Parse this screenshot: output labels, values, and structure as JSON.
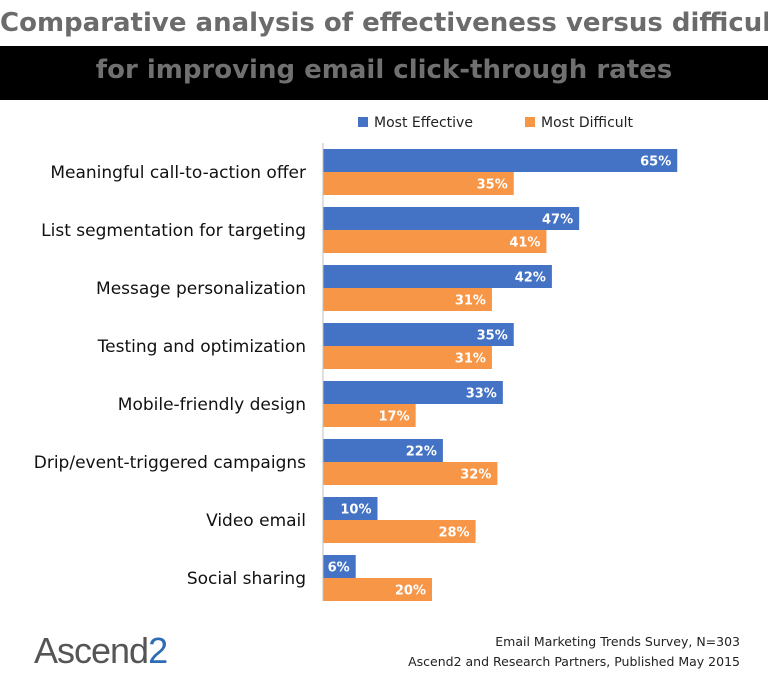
{
  "title": {
    "line1": "Comparative analysis of effectiveness versus difficulty",
    "line2": "for improving email click-through rates"
  },
  "chart_data": {
    "type": "bar",
    "orientation": "horizontal",
    "categories": [
      "Meaningful call-to-action offer",
      "List segmentation for targeting",
      "Message personalization",
      "Testing and optimization",
      "Mobile-friendly design",
      "Drip/event-triggered campaigns",
      "Video email",
      "Social sharing"
    ],
    "series": [
      {
        "name": "Most Effective",
        "color": "#4472c4",
        "values": [
          65,
          47,
          42,
          35,
          33,
          22,
          10,
          6
        ]
      },
      {
        "name": "Most Difficult",
        "color": "#f79646",
        "values": [
          35,
          41,
          31,
          31,
          17,
          32,
          28,
          20
        ]
      }
    ],
    "value_suffix": "%",
    "xlim": [
      0,
      100
    ],
    "legend": "top",
    "grid": false
  },
  "footer": {
    "logo_text": "Ascend",
    "logo_num": "2",
    "source_line1": "Email Marketing Trends Survey, N=303",
    "source_line2": "Ascend2 and Research Partners, Published May 2015"
  }
}
